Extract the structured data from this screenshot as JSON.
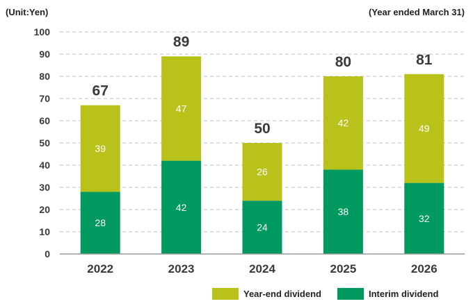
{
  "chart_data": {
    "type": "bar",
    "stacked": true,
    "unit_label": "(Unit:Yen)",
    "period_label": "(Year ended March 31)",
    "categories": [
      "2022",
      "2023",
      "2024",
      "2025",
      "2026"
    ],
    "series": [
      {
        "name": "Interim dividend",
        "values": [
          28,
          42,
          24,
          38,
          32
        ],
        "color": "#009a60"
      },
      {
        "name": "Year-end dividend",
        "values": [
          39,
          47,
          26,
          42,
          49
        ],
        "color": "#b9c21a"
      }
    ],
    "totals": [
      67,
      89,
      50,
      80,
      81
    ],
    "ylim": [
      0,
      100
    ],
    "yticks": [
      0,
      10,
      20,
      30,
      40,
      50,
      60,
      70,
      80,
      90,
      100
    ],
    "grid": true,
    "legend_placement": "bottom-right",
    "legend_order": [
      "Year-end dividend",
      "Interim dividend"
    ]
  }
}
